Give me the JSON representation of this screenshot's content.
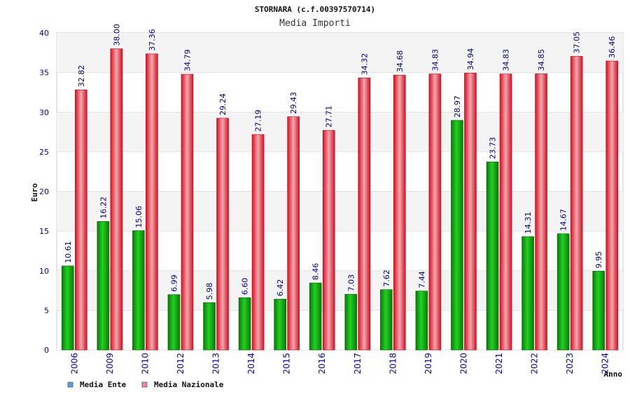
{
  "colors": {
    "ente": "#1fc01f",
    "nazionale": "#ee2233",
    "axis_text": "#0000aa",
    "label_text": "#000080",
    "band": "#f4f4f4",
    "legend_ente_swatch": "#5aa0e8",
    "legend_nazionale_swatch": "#e888b8"
  },
  "chart_data": {
    "type": "bar",
    "title": "STORNARA (c.f.00397570714)",
    "subtitle": "Media Importi",
    "xlabel": "Anno",
    "ylabel": "Euro",
    "ylim": [
      0,
      40
    ],
    "yticks": [
      "0",
      "5",
      "10",
      "15",
      "20",
      "25",
      "30",
      "35",
      "40"
    ],
    "grid": "horizontal alternating bands",
    "legend_placement": "bottom-left",
    "categories": [
      "2006",
      "2009",
      "2010",
      "2012",
      "2013",
      "2014",
      "2015",
      "2016",
      "2017",
      "2018",
      "2019",
      "2020",
      "2021",
      "2022",
      "2023",
      "2024"
    ],
    "series": [
      {
        "name": "Media Ente",
        "values": [
          10.61,
          16.22,
          15.06,
          6.99,
          5.98,
          6.6,
          6.42,
          8.46,
          7.03,
          7.62,
          7.44,
          28.97,
          23.73,
          14.31,
          14.67,
          9.95
        ],
        "labels": [
          "10.61",
          "16.22",
          "15.06",
          "6.99",
          "5.98",
          "6.60",
          "6.42",
          "8.46",
          "7.03",
          "7.62",
          "7.44",
          "28.97",
          "23.73",
          "14.31",
          "14.67",
          "9.95"
        ]
      },
      {
        "name": "Media Nazionale",
        "values": [
          32.82,
          38.0,
          37.36,
          34.79,
          29.24,
          27.19,
          29.43,
          27.71,
          34.32,
          34.68,
          34.83,
          34.94,
          34.83,
          34.85,
          37.05,
          36.46
        ],
        "labels": [
          "32.82",
          "38.00",
          "37.36",
          "34.79",
          "29.24",
          "27.19",
          "29.43",
          "27.71",
          "34.32",
          "34.68",
          "34.83",
          "34.94",
          "34.83",
          "34.85",
          "37.05",
          "36.46"
        ]
      }
    ]
  }
}
